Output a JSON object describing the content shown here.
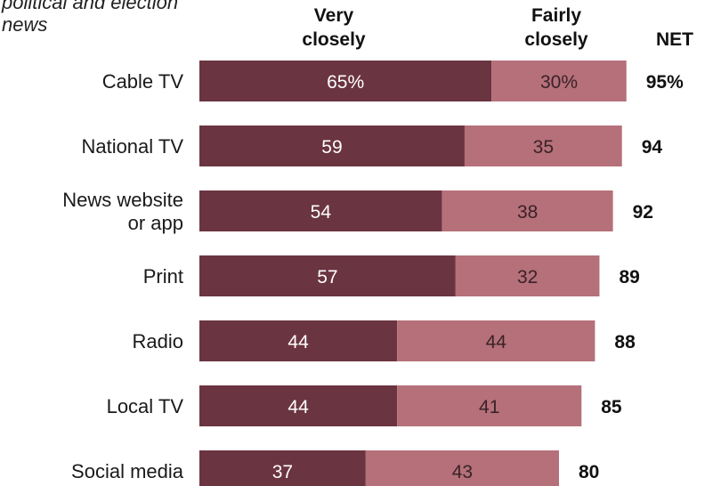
{
  "chart_data": {
    "type": "bar",
    "orientation": "horizontal",
    "stacked": true,
    "title": "political and election news",
    "title_lines": [
      "political and election",
      "news"
    ],
    "categories": [
      "Cable TV",
      "National TV",
      "News website or app",
      "Print",
      "Radio",
      "Local TV",
      "Social media"
    ],
    "category_lines": [
      [
        "Cable TV"
      ],
      [
        "National TV"
      ],
      [
        "News website",
        "or app"
      ],
      [
        "Print"
      ],
      [
        "Radio"
      ],
      [
        "Local TV"
      ],
      [
        "Social media"
      ]
    ],
    "series": [
      {
        "name": "Very closely",
        "header_lines": [
          "Very",
          "closely"
        ],
        "values": [
          65,
          59,
          54,
          57,
          44,
          44,
          37
        ],
        "labels": [
          "65%",
          "59",
          "54",
          "57",
          "44",
          "44",
          "37"
        ],
        "color": "#6b3441"
      },
      {
        "name": "Fairly closely",
        "header_lines": [
          "Fairly",
          "closely"
        ],
        "values": [
          30,
          35,
          38,
          32,
          44,
          41,
          43
        ],
        "labels": [
          "30%",
          "35",
          "38",
          "32",
          "44",
          "41",
          "43"
        ],
        "color": "#b57079"
      }
    ],
    "net": {
      "name": "NET",
      "values": [
        95,
        94,
        92,
        89,
        88,
        85,
        80
      ],
      "labels": [
        "95%",
        "94",
        "92",
        "89",
        "88",
        "85",
        "80"
      ]
    },
    "xlim": [
      0,
      100
    ],
    "grid": false,
    "legend": "column headers above bars"
  }
}
